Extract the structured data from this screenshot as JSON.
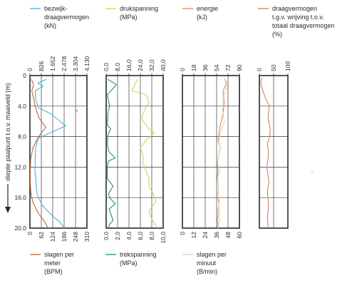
{
  "chart_data": {
    "type": "line",
    "y_axis": {
      "label": "diepte paalpunt t.o.v. maaiveld (m)",
      "ticks": [
        "0",
        "4,0",
        "8,0",
        "12,0",
        "16,0",
        "20,0"
      ],
      "ylim": [
        0,
        20
      ],
      "inverted": true
    },
    "grid": true,
    "panels": [
      {
        "top_axis": {
          "ticks": [
            "0",
            "826",
            "1.652",
            "2.478",
            "3.304",
            "4.130"
          ],
          "range": [
            0,
            4130
          ]
        },
        "bottom_axis": {
          "ticks": [
            "0",
            "62",
            "124",
            "186",
            "248",
            "310"
          ],
          "range": [
            0,
            310
          ]
        },
        "series": [
          {
            "name": "bezwijk- draagvermogen (kN)",
            "color": "#4ab3d8",
            "axis": "top",
            "x": [
              1200,
              550,
              950,
              380,
              420,
              600,
              1500,
              2600,
              600,
              420,
              380,
              380,
              360,
              420,
              450,
              520,
              700,
              900,
              1300,
              1700,
              2050,
              2300,
              2480
            ],
            "y": [
              0.5,
              1.0,
              1.4,
              2.0,
              3.0,
              4.2,
              5.0,
              6.6,
              8.2,
              9.5,
              10.5,
              11.5,
              12.5,
              13.5,
              14.5,
              15.5,
              16.3,
              17.0,
              17.8,
              18.5,
              19.0,
              19.5,
              20.0
            ]
          },
          {
            "name": "slagen per meter (BPM)",
            "color": "#b8683a",
            "axis": "bottom",
            "x": [
              8,
              20,
              10,
              20,
              28,
              48,
              86,
              60,
              38,
              16,
              4,
              2,
              2,
              4,
              10,
              18,
              30,
              42,
              56,
              70,
              80,
              90,
              100
            ],
            "y": [
              0.5,
              1.2,
              2.0,
              3.0,
              4.0,
              5.5,
              6.8,
              7.6,
              8.4,
              9.5,
              11.0,
              12.5,
              14.0,
              15.0,
              16.0,
              16.7,
              17.3,
              17.9,
              18.4,
              18.8,
              19.2,
              19.6,
              20.0
            ]
          }
        ]
      },
      {
        "top_axis": {
          "ticks": [
            "0,0",
            "8,0",
            "16,0",
            "24,0",
            "32,0",
            "40,0"
          ],
          "range": [
            0,
            40
          ]
        },
        "bottom_axis": {
          "ticks": [
            "0,0",
            "2,0",
            "4,0",
            "6,0",
            "8,0",
            "10,0"
          ],
          "range": [
            0,
            10
          ]
        },
        "series": [
          {
            "name": "drukspanning (MPa)",
            "color": "#c5d862",
            "axis": "top",
            "x": [
              22,
              18,
              28,
              30,
              27,
              25,
              26,
              28,
              30,
              34,
              28,
              24,
              26,
              26,
              28,
              30,
              30,
              33,
              35,
              33,
              30,
              32,
              36
            ],
            "y": [
              0.5,
              2.0,
              2.5,
              3.5,
              4.5,
              5.5,
              6.0,
              6.5,
              7.0,
              7.5,
              8.5,
              9.5,
              10.5,
              11.5,
              12.5,
              13.5,
              14.5,
              15.5,
              16.5,
              17.0,
              17.8,
              18.8,
              20.0
            ]
          },
          {
            "name": "trekspanning (MPa)",
            "color": "#2a9648",
            "axis": "bottom",
            "x": [
              0.3,
              1.8,
              0.2,
              0.6,
              0.3,
              0.2,
              0.8,
              0.3,
              0.2,
              0.5,
              1.6,
              0.4,
              0.2,
              0.2,
              1.2,
              0.4,
              0.8,
              1.6,
              0.5,
              0.9,
              1.2,
              0.6,
              0.4
            ],
            "y": [
              0.5,
              1.2,
              2.5,
              4.0,
              5.0,
              6.5,
              7.0,
              7.8,
              9.0,
              10.0,
              10.8,
              11.2,
              12.0,
              13.5,
              14.5,
              15.5,
              16.2,
              16.8,
              17.5,
              18.3,
              19.0,
              19.5,
              20.0
            ]
          }
        ]
      },
      {
        "top_axis": {
          "ticks": [
            "0",
            "18",
            "36",
            "54",
            "72",
            "90"
          ],
          "range": [
            0,
            90
          ]
        },
        "bottom_axis": {
          "ticks": [
            "0",
            "12",
            "24",
            "36",
            "48",
            "60"
          ],
          "range": [
            0,
            60
          ]
        },
        "series": [
          {
            "name": "energie (kJ)",
            "color": "#e88068",
            "axis": "top",
            "x": [
              66,
              70,
              64,
              66,
              64,
              60,
              58,
              56,
              60,
              57,
              55,
              56,
              55,
              57,
              56,
              57,
              58,
              56,
              56,
              55,
              56,
              55
            ],
            "y": [
              0.3,
              1.0,
              2.0,
              3.5,
              5.0,
              6.5,
              7.5,
              8.5,
              9.5,
              10.5,
              11.5,
              12.5,
              13.5,
              14.5,
              15.5,
              16.5,
              17.0,
              17.5,
              18.5,
              19.0,
              19.5,
              20.0
            ]
          },
          {
            "name": "slagen per minuut (B/min)",
            "color": "#d8d6b0",
            "axis": "bottom",
            "x": [
              44,
              47,
              43,
              42,
              44,
              40,
              38,
              40,
              38,
              37,
              39,
              37,
              38,
              37,
              39,
              38,
              40,
              38,
              39,
              38,
              38
            ],
            "y": [
              0.3,
              1.5,
              3.0,
              4.5,
              6.0,
              7.5,
              8.5,
              9.5,
              10.5,
              11.5,
              12.5,
              13.5,
              14.5,
              15.5,
              16.5,
              17.5,
              18.0,
              18.5,
              19.0,
              19.5,
              20.0
            ]
          }
        ]
      },
      {
        "top_axis": {
          "ticks": [
            "0",
            "50",
            "100"
          ],
          "range": [
            0,
            100
          ]
        },
        "bottom_axis": null,
        "series": [
          {
            "name": "draagvermogen t.g.v. wrijving t.o.v. totaal draagvermogen (%)",
            "color": "#e07a62",
            "axis": "top",
            "x": [
              8,
              5,
              12,
              22,
              35,
              30,
              38,
              36,
              28,
              32,
              30,
              26,
              30,
              34,
              28,
              30,
              32,
              30,
              28,
              30,
              29
            ],
            "y": [
              0.3,
              1.0,
              2.0,
              3.0,
              4.0,
              5.5,
              7.0,
              8.0,
              9.0,
              10.0,
              11.0,
              12.0,
              13.0,
              14.0,
              15.0,
              16.0,
              17.0,
              18.0,
              18.5,
              19.5,
              20.0
            ]
          }
        ]
      }
    ],
    "legend_top": [
      {
        "line1": "bezwijk-",
        "line2": "draagvermogen",
        "line3": "(kN)",
        "line4": "",
        "color": "#4ab3d8"
      },
      {
        "line1": "drukspanning",
        "line2": "(MPa)",
        "line3": "",
        "line4": "",
        "color": "#c5d862"
      },
      {
        "line1": "energie",
        "line2": "(kJ)",
        "line3": "",
        "line4": "",
        "color": "#e88068"
      },
      {
        "line1": "draagvermogen",
        "line2": "t.g.v. wrijving t.o.v.",
        "line3": "totaal draagvermogen",
        "line4": "(%)",
        "color": "#e07a62"
      }
    ],
    "legend_bottom": [
      {
        "line1": "slagen per",
        "line2": "meter",
        "line3": "(BPM)",
        "color": "#b8683a"
      },
      {
        "line1": "trekspanning",
        "line2": "(MPa)",
        "line3": "",
        "color": "#2a9648"
      },
      {
        "line1": "slagen per",
        "line2": "minuut",
        "line3": "(B/min)",
        "color": "#d8d6b0"
      }
    ]
  }
}
